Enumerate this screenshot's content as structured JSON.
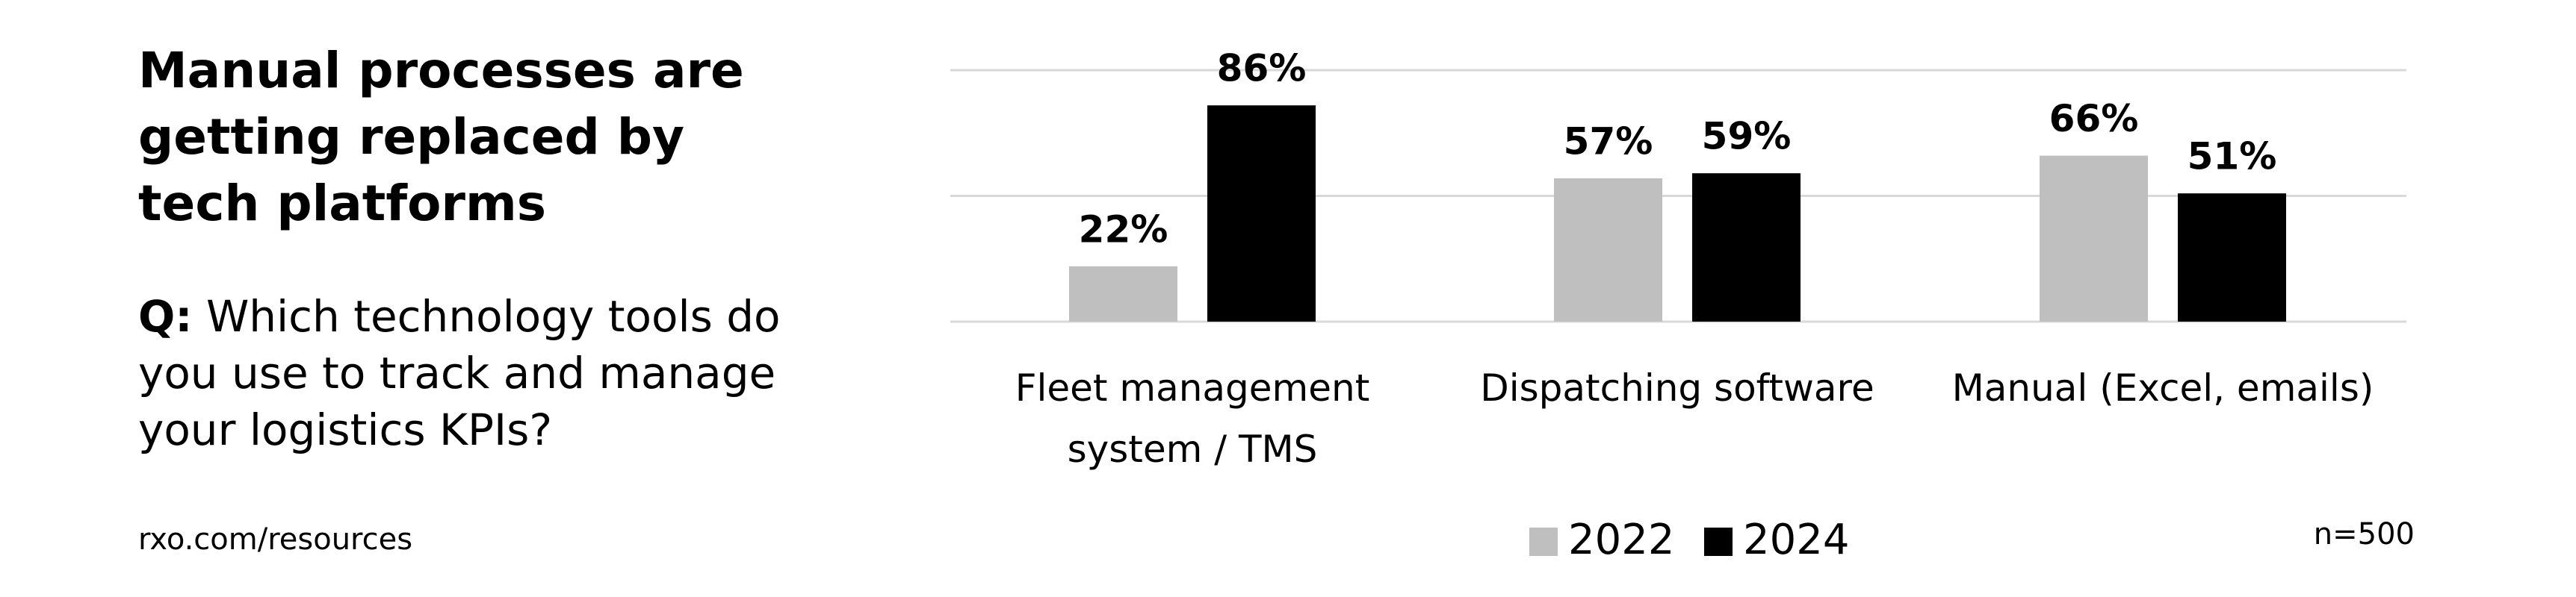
{
  "header": {
    "title": "Manual processes are getting replaced by tech platforms",
    "question_prefix": "Q:",
    "question": "Which technology tools do you use to track and manage your logistics KPIs?"
  },
  "footer": {
    "source": "rxo.com/resources",
    "sample": "n=500"
  },
  "chart_data": {
    "type": "bar",
    "categories": [
      "Fleet management system / TMS",
      "Dispatching software",
      "Manual (Excel, emails)"
    ],
    "series": [
      {
        "name": "2022",
        "color": "#bfbfbf",
        "values": [
          22,
          57,
          66
        ],
        "value_labels": [
          "22%",
          "57%",
          "66%"
        ]
      },
      {
        "name": "2024",
        "color": "#000000",
        "values": [
          86,
          59,
          51
        ],
        "value_labels": [
          "86%",
          "59%",
          "51%"
        ]
      }
    ],
    "ylim": [
      0,
      100
    ],
    "yticks": [
      0,
      50,
      100
    ],
    "grid": true
  }
}
